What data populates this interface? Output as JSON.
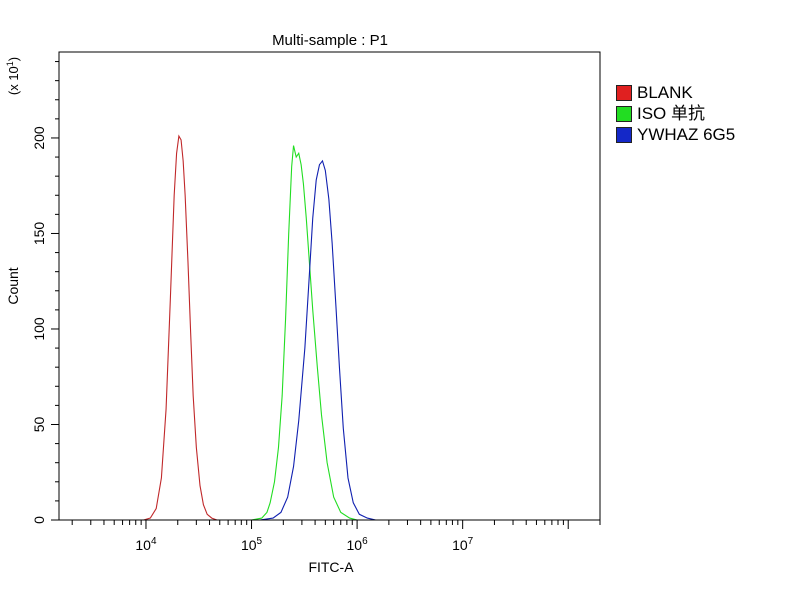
{
  "chart_data": {
    "type": "area",
    "title": "Multi-sample : P1",
    "xlabel": "FITC-A",
    "ylabel": "Count",
    "y_multiplier": {
      "base": "(x 10",
      "exp": "1",
      "close": ")"
    },
    "x_scale": "log",
    "xlim": [
      1500,
      200000000
    ],
    "ylim": [
      0,
      245
    ],
    "x_ticks": [
      {
        "value": 10000,
        "base": "10",
        "exp": "4"
      },
      {
        "value": 100000,
        "base": "10",
        "exp": "5"
      },
      {
        "value": 1000000,
        "base": "10",
        "exp": "6"
      },
      {
        "value": 10000000,
        "base": "10",
        "exp": "7"
      }
    ],
    "y_ticks": [
      0,
      50,
      100,
      150,
      200
    ],
    "legend_position": "right",
    "series": [
      {
        "name": "BLANK",
        "color": "#c0282a",
        "points": [
          [
            9500,
            0
          ],
          [
            11000,
            1
          ],
          [
            12500,
            6
          ],
          [
            14000,
            22
          ],
          [
            15500,
            58
          ],
          [
            17000,
            115
          ],
          [
            18500,
            170
          ],
          [
            19500,
            192
          ],
          [
            20500,
            201
          ],
          [
            21500,
            199
          ],
          [
            22500,
            188
          ],
          [
            23500,
            170
          ],
          [
            25000,
            135
          ],
          [
            26500,
            98
          ],
          [
            28000,
            65
          ],
          [
            30000,
            38
          ],
          [
            32500,
            18
          ],
          [
            35000,
            8
          ],
          [
            38000,
            3
          ],
          [
            42000,
            1
          ],
          [
            47000,
            0
          ]
        ]
      },
      {
        "name": "ISO 单抗",
        "color": "#22dd22",
        "points": [
          [
            100000,
            0
          ],
          [
            125000,
            1
          ],
          [
            140000,
            4
          ],
          [
            150000,
            9
          ],
          [
            165000,
            20
          ],
          [
            180000,
            38
          ],
          [
            195000,
            65
          ],
          [
            210000,
            105
          ],
          [
            225000,
            150
          ],
          [
            240000,
            185
          ],
          [
            250000,
            196
          ],
          [
            265000,
            190
          ],
          [
            280000,
            192
          ],
          [
            295000,
            186
          ],
          [
            310000,
            176
          ],
          [
            330000,
            158
          ],
          [
            350000,
            138
          ],
          [
            380000,
            110
          ],
          [
            420000,
            80
          ],
          [
            460000,
            55
          ],
          [
            520000,
            30
          ],
          [
            600000,
            12
          ],
          [
            700000,
            4
          ],
          [
            850000,
            1
          ],
          [
            1000000,
            0
          ]
        ]
      },
      {
        "name": "YWHAZ 6G5",
        "color": "#1020b0",
        "points": [
          [
            120000,
            0
          ],
          [
            160000,
            1
          ],
          [
            190000,
            4
          ],
          [
            220000,
            12
          ],
          [
            250000,
            28
          ],
          [
            280000,
            52
          ],
          [
            320000,
            90
          ],
          [
            350000,
            125
          ],
          [
            380000,
            158
          ],
          [
            410000,
            178
          ],
          [
            440000,
            186
          ],
          [
            470000,
            188
          ],
          [
            500000,
            183
          ],
          [
            540000,
            168
          ],
          [
            580000,
            145
          ],
          [
            630000,
            112
          ],
          [
            680000,
            80
          ],
          [
            740000,
            48
          ],
          [
            820000,
            22
          ],
          [
            920000,
            9
          ],
          [
            1050000,
            3
          ],
          [
            1250000,
            1
          ],
          [
            1500000,
            0
          ]
        ]
      }
    ]
  }
}
